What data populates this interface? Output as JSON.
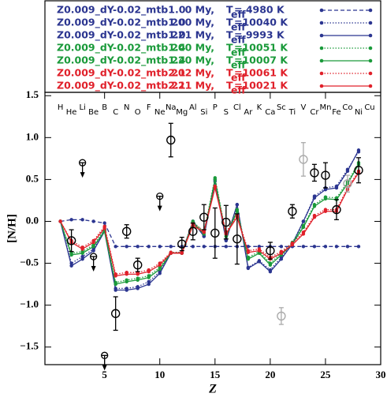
{
  "chart_data": {
    "type": "line",
    "xlabel": "Z",
    "ylabel": "[N/H]",
    "xlim": [
      -0.4,
      30
    ],
    "ylim": [
      -1.71,
      1.54
    ],
    "xticks": [
      5,
      10,
      15,
      20,
      25,
      30
    ],
    "yticks": [
      1.5,
      {
        "value": 1,
        "label": "1.0"
      },
      0.5,
      {
        "value": 0,
        "label": "0.0"
      },
      {
        "value": -0.5,
        "label": "−0.5"
      },
      {
        "value": -1,
        "label": "−1.0"
      },
      {
        "value": -1.5,
        "label": "−1.5"
      }
    ],
    "teff_symbol": "T",
    "teff_subscript": "eff",
    "elements": [
      "H",
      "He",
      "Li",
      "Be",
      "B",
      "C",
      "N",
      "O",
      "F",
      "Ne",
      "Na",
      "Mg",
      "Al",
      "Si",
      "P",
      "S",
      "Cl",
      "Ar",
      "K",
      "Ca",
      "Sc",
      "Ti",
      "V",
      "Cr",
      "Mn",
      "Fe",
      "Co",
      "Ni",
      "Cu"
    ],
    "x": [
      1,
      2,
      3,
      4,
      5,
      6,
      7,
      8,
      9,
      10,
      11,
      12,
      13,
      14,
      15,
      16,
      17,
      18,
      19,
      20,
      21,
      22,
      23,
      24,
      25,
      26,
      27,
      28
    ],
    "series": [
      {
        "name": "Z0.009_dY-0.02_mtb1.0",
        "age": "0 My,",
        "teff": "= 4980 K",
        "color": "#2b3590",
        "dash": "dashed",
        "values": [
          0,
          0.02,
          0.02,
          0,
          -0.02,
          -0.3,
          -0.3,
          -0.3,
          -0.3,
          -0.3,
          -0.3,
          -0.3,
          -0.3,
          -0.3,
          -0.3,
          -0.3,
          -0.3,
          -0.3,
          -0.3,
          -0.3,
          -0.3,
          -0.3,
          -0.3,
          -0.3,
          -0.3,
          -0.3,
          -0.3,
          -0.3
        ]
      },
      {
        "name": "Z0.009_dY-0.02_mtb1.0",
        "age": "200 My,",
        "teff": "=10040 K",
        "color": "#2b3590",
        "dash": "dotted",
        "values": [
          0,
          -0.5,
          -0.42,
          -0.33,
          -0.1,
          -0.8,
          -0.8,
          -0.78,
          -0.72,
          -0.6,
          -0.38,
          -0.37,
          0,
          -0.17,
          0.5,
          -0.22,
          0.2,
          -0.55,
          -0.47,
          -0.58,
          -0.43,
          -0.26,
          0,
          0.3,
          0.4,
          0.42,
          0.62,
          0.83
        ]
      },
      {
        "name": "Z0.009_dY-0.02_mtb1.0",
        "age": "221 My,",
        "teff": "= 9993 K",
        "color": "#2b3590",
        "dash": "solid",
        "values": [
          0,
          -0.53,
          -0.45,
          -0.35,
          -0.12,
          -0.82,
          -0.82,
          -0.8,
          -0.75,
          -0.62,
          -0.38,
          -0.38,
          0,
          -0.18,
          0.48,
          -0.23,
          0.2,
          -0.56,
          -0.48,
          -0.6,
          -0.45,
          -0.27,
          0,
          0.28,
          0.38,
          0.4,
          0.6,
          0.85
        ]
      },
      {
        "name": "Z0.009_dY-0.02_mtb1.4",
        "age": "200 My,",
        "teff": "=10051 K",
        "color": "#1a9a3a",
        "dash": "dotted",
        "values": [
          0,
          -0.38,
          -0.36,
          -0.28,
          -0.1,
          -0.73,
          -0.7,
          -0.68,
          -0.65,
          -0.55,
          -0.37,
          -0.37,
          0,
          -0.13,
          0.52,
          -0.16,
          0.14,
          -0.43,
          -0.36,
          -0.5,
          -0.38,
          -0.25,
          -0.05,
          0.2,
          0.29,
          0.28,
          0.47,
          0.7
        ]
      },
      {
        "name": "Z0.009_dY-0.02_mtb1.4",
        "age": "220 My,",
        "teff": "=10007 K",
        "color": "#1a9a3a",
        "dash": "solid",
        "values": [
          0,
          -0.4,
          -0.38,
          -0.3,
          -0.12,
          -0.75,
          -0.72,
          -0.7,
          -0.67,
          -0.57,
          -0.38,
          -0.38,
          -0.02,
          -0.15,
          0.5,
          -0.18,
          0.12,
          -0.45,
          -0.38,
          -0.52,
          -0.4,
          -0.27,
          -0.07,
          0.18,
          0.27,
          0.26,
          0.45,
          0.68
        ]
      },
      {
        "name": "Z0.009_dY-0.02_mtb2.1",
        "age": "202 My,",
        "teff": "=10061 K",
        "color": "#e0202a",
        "dash": "dotted",
        "values": [
          0,
          -0.23,
          -0.31,
          -0.23,
          -0.06,
          -0.63,
          -0.61,
          -0.61,
          -0.58,
          -0.5,
          -0.37,
          -0.37,
          -0.03,
          -0.11,
          0.42,
          -0.13,
          0.07,
          -0.35,
          -0.33,
          -0.43,
          -0.36,
          -0.26,
          -0.13,
          0.07,
          0.14,
          0.14,
          0.4,
          0.6
        ]
      },
      {
        "name": "Z0.009_dY-0.02_mtb2.1",
        "age": "221 My,",
        "teff": "=10021 K",
        "color": "#e0202a",
        "dash": "solid",
        "values": [
          0,
          -0.25,
          -0.33,
          -0.25,
          -0.08,
          -0.65,
          -0.63,
          -0.63,
          -0.6,
          -0.52,
          -0.38,
          -0.38,
          -0.05,
          -0.13,
          0.4,
          -0.15,
          0.05,
          -0.37,
          -0.35,
          -0.45,
          -0.38,
          -0.28,
          -0.15,
          0.05,
          0.12,
          0.12,
          0.38,
          0.58
        ]
      }
    ],
    "observations": {
      "color": "#000000",
      "x": [
        2,
        6,
        7,
        8,
        11,
        12,
        13,
        14,
        15,
        16,
        17,
        20,
        22,
        24,
        25,
        26,
        28
      ],
      "values": [
        -0.23,
        -1.1,
        -0.12,
        -0.52,
        0.97,
        -0.27,
        -0.12,
        0.05,
        -0.14,
        -0.01,
        -0.21,
        -0.35,
        0.12,
        0.58,
        0.55,
        0.14,
        0.61
      ],
      "errors": [
        0.13,
        0.2,
        0.08,
        0.08,
        0.2,
        0.08,
        0.1,
        0.15,
        0.3,
        0.2,
        0.3,
        0.1,
        0.08,
        0.1,
        0.15,
        0.12,
        0.15
      ]
    },
    "observations_uncertain": {
      "color": "#aaaaaa",
      "x": [
        21,
        23,
        27
      ],
      "values": [
        -1.13,
        0.74,
        0.45
      ],
      "errors": [
        0.1,
        0.2,
        0.1
      ]
    },
    "upper_limits": {
      "color": "#000000",
      "x": [
        3,
        4,
        5,
        10
      ],
      "values": [
        0.7,
        -0.42,
        -1.6,
        0.3
      ]
    }
  }
}
